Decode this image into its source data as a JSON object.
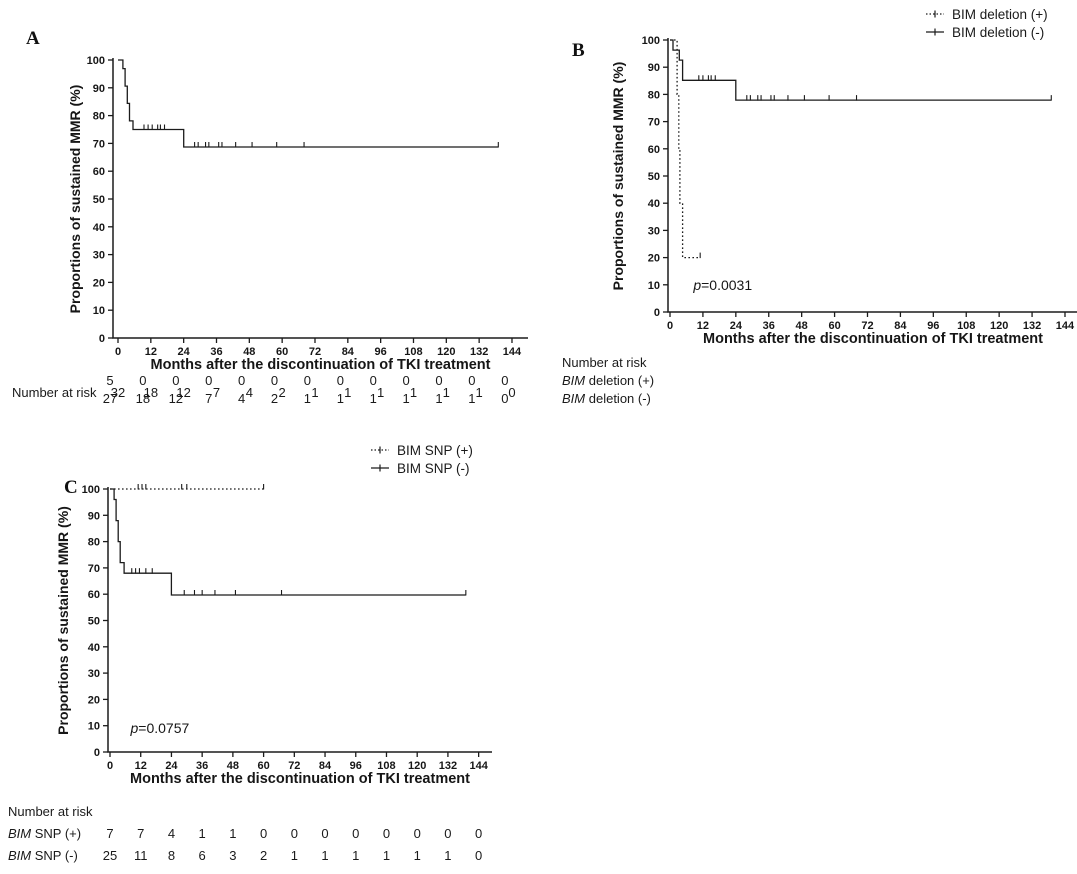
{
  "figure": {
    "background_color": "#ffffff",
    "line_color": "#1b1b1b",
    "xlabel": "Months after the discontinuation of TKI treatment",
    "ylabel": "Proportions of sustained MMR (%)"
  },
  "chart_data": [
    {
      "panel": "A",
      "type": "line",
      "kind": "kaplan-meier-step",
      "title": "",
      "xlabel": "Months after the discontinuation of TKI treatment",
      "ylabel": "Proportions of sustained MMR (%)",
      "xlim": [
        0,
        150
      ],
      "ylim": [
        0,
        100
      ],
      "x_ticks": [
        0,
        12,
        24,
        36,
        48,
        60,
        72,
        84,
        96,
        108,
        120,
        132,
        144
      ],
      "y_ticks": [
        0,
        10,
        20,
        30,
        40,
        50,
        60,
        70,
        80,
        90,
        100
      ],
      "grid": false,
      "legend_position": "none",
      "p_value": null,
      "series": [
        {
          "name": "",
          "line": "solid",
          "steps": [
            [
              0,
              100
            ],
            [
              1.8,
              100
            ],
            [
              1.8,
              96.9
            ],
            [
              2.6,
              96.9
            ],
            [
              2.6,
              90.6
            ],
            [
              3.4,
              90.6
            ],
            [
              3.4,
              84.4
            ],
            [
              4.2,
              84.4
            ],
            [
              4.2,
              78.1
            ],
            [
              5.5,
              78.1
            ],
            [
              5.5,
              75
            ],
            [
              24,
              75
            ],
            [
              24,
              68.7
            ],
            [
              139,
              68.7
            ]
          ],
          "censor_marks": [
            [
              9.5,
              75
            ],
            [
              11,
              75
            ],
            [
              12.5,
              75
            ],
            [
              14.5,
              75
            ],
            [
              15.5,
              75
            ],
            [
              17,
              75
            ],
            [
              28,
              68.7
            ],
            [
              29.3,
              68.7
            ],
            [
              32,
              68.7
            ],
            [
              33.2,
              68.7
            ],
            [
              36.8,
              68.7
            ],
            [
              38,
              68.7
            ],
            [
              43,
              68.7
            ],
            [
              49,
              68.7
            ],
            [
              58,
              68.7
            ],
            [
              68,
              68.7
            ],
            [
              139,
              68.7
            ]
          ]
        }
      ],
      "risk_header": "",
      "number_at_risk": [
        {
          "label_italic": "",
          "label_rest": "Number at risk",
          "values": [
            32,
            18,
            12,
            7,
            4,
            2,
            1,
            1,
            1,
            1,
            1,
            1,
            0
          ]
        }
      ]
    },
    {
      "panel": "B",
      "type": "line",
      "kind": "kaplan-meier-step",
      "title": "",
      "xlabel": "Months after the discontinuation of TKI treatment",
      "ylabel": "Proportions of sustained MMR (%)",
      "xlim": [
        0,
        150
      ],
      "ylim": [
        0,
        100
      ],
      "x_ticks": [
        0,
        12,
        24,
        36,
        48,
        60,
        72,
        84,
        96,
        108,
        120,
        132,
        144
      ],
      "y_ticks": [
        0,
        10,
        20,
        30,
        40,
        50,
        60,
        70,
        80,
        90,
        100
      ],
      "grid": false,
      "legend_position": "top-right",
      "p_value": {
        "symbol": "p",
        "rest": "=0.0031"
      },
      "series": [
        {
          "name": "BIM deletion (+)",
          "line": "dotted",
          "steps": [
            [
              0,
              100
            ],
            [
              2.6,
              100
            ],
            [
              2.6,
              80
            ],
            [
              3.2,
              80
            ],
            [
              3.2,
              60
            ],
            [
              3.6,
              60
            ],
            [
              3.6,
              40
            ],
            [
              4.6,
              40
            ],
            [
              4.6,
              20
            ],
            [
              11,
              20
            ]
          ],
          "censor_marks": [
            [
              11,
              20
            ]
          ]
        },
        {
          "name": "BIM deletion (-)",
          "line": "solid",
          "steps": [
            [
              0,
              100
            ],
            [
              1.1,
              100
            ],
            [
              1.1,
              96.3
            ],
            [
              3.4,
              96.3
            ],
            [
              3.4,
              92.6
            ],
            [
              4.6,
              92.6
            ],
            [
              4.6,
              85.2
            ],
            [
              24,
              85.2
            ],
            [
              24,
              77.9
            ],
            [
              139,
              77.9
            ]
          ],
          "censor_marks": [
            [
              10.5,
              85.2
            ],
            [
              12,
              85.2
            ],
            [
              14,
              85.2
            ],
            [
              15,
              85.2
            ],
            [
              16.5,
              85.2
            ],
            [
              28,
              77.9
            ],
            [
              29.3,
              77.9
            ],
            [
              32,
              77.9
            ],
            [
              33.2,
              77.9
            ],
            [
              36.8,
              77.9
            ],
            [
              38,
              77.9
            ],
            [
              43,
              77.9
            ],
            [
              49,
              77.9
            ],
            [
              58,
              77.9
            ],
            [
              68,
              77.9
            ],
            [
              139,
              77.9
            ]
          ]
        }
      ],
      "risk_header": "Number at risk",
      "number_at_risk": [
        {
          "label_italic": "BIM",
          "label_rest": " deletion (+)",
          "values": [
            5,
            0,
            0,
            0,
            0,
            0,
            0,
            0,
            0,
            0,
            0,
            0,
            0
          ]
        },
        {
          "label_italic": "BIM",
          "label_rest": " deletion (-)",
          "values": [
            27,
            18,
            12,
            7,
            4,
            2,
            1,
            1,
            1,
            1,
            1,
            1,
            0
          ]
        }
      ]
    },
    {
      "panel": "C",
      "type": "line",
      "kind": "kaplan-meier-step",
      "title": "",
      "xlabel": "Months after the discontinuation of TKI treatment",
      "ylabel": "Proportions of sustained MMR (%)",
      "xlim": [
        0,
        150
      ],
      "ylim": [
        0,
        100
      ],
      "x_ticks": [
        0,
        12,
        24,
        36,
        48,
        60,
        72,
        84,
        96,
        108,
        120,
        132,
        144
      ],
      "y_ticks": [
        0,
        10,
        20,
        30,
        40,
        50,
        60,
        70,
        80,
        90,
        100
      ],
      "grid": false,
      "legend_position": "top-right",
      "p_value": {
        "symbol": "p",
        "rest": "=0.0757"
      },
      "series": [
        {
          "name": "BIM SNP (+)",
          "line": "dotted",
          "steps": [
            [
              0,
              100
            ],
            [
              60,
              100
            ]
          ],
          "censor_marks": [
            [
              11,
              100
            ],
            [
              12.5,
              100
            ],
            [
              14,
              100
            ],
            [
              28,
              100
            ],
            [
              30,
              100
            ],
            [
              60,
              100
            ]
          ]
        },
        {
          "name": "BIM SNP (-)",
          "line": "solid",
          "steps": [
            [
              0,
              100
            ],
            [
              1.6,
              100
            ],
            [
              1.6,
              96
            ],
            [
              2.4,
              96
            ],
            [
              2.4,
              88
            ],
            [
              3.2,
              88
            ],
            [
              3.2,
              80
            ],
            [
              4,
              80
            ],
            [
              4,
              72
            ],
            [
              5.5,
              72
            ],
            [
              5.5,
              68
            ],
            [
              24,
              68
            ],
            [
              24,
              59.7
            ],
            [
              139,
              59.7
            ]
          ],
          "censor_marks": [
            [
              8.5,
              68
            ],
            [
              10,
              68
            ],
            [
              11.5,
              68
            ],
            [
              14,
              68
            ],
            [
              16.5,
              68
            ],
            [
              29,
              59.7
            ],
            [
              33,
              59.7
            ],
            [
              36,
              59.7
            ],
            [
              41,
              59.7
            ],
            [
              49,
              59.7
            ],
            [
              67,
              59.7
            ],
            [
              139,
              59.7
            ]
          ]
        }
      ],
      "risk_header": "Number at risk",
      "number_at_risk": [
        {
          "label_italic": "BIM",
          "label_rest": " SNP (+)",
          "values": [
            7,
            7,
            4,
            1,
            1,
            0,
            0,
            0,
            0,
            0,
            0,
            0,
            0
          ]
        },
        {
          "label_italic": "BIM",
          "label_rest": " SNP (-)",
          "values": [
            25,
            11,
            8,
            6,
            3,
            2,
            1,
            1,
            1,
            1,
            1,
            1,
            0
          ]
        }
      ]
    }
  ]
}
